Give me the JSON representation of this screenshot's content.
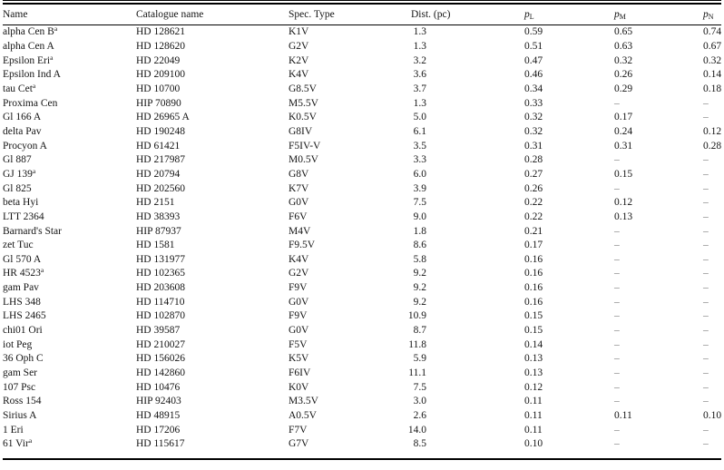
{
  "table": {
    "columns": [
      {
        "label": "Name"
      },
      {
        "label": "Catalogue name"
      },
      {
        "label": "Spec. Type"
      },
      {
        "label": "Dist. (pc)"
      },
      {
        "label": "p",
        "sub": "L"
      },
      {
        "label": "p",
        "sub": "M"
      },
      {
        "label": "p",
        "sub": "N"
      }
    ],
    "rows": [
      {
        "name": "alpha Cen B",
        "sup": "a",
        "cat": "HD 128621",
        "spec": "K1V",
        "dist": "1.3",
        "pl": "0.59",
        "pm": "0.65",
        "pn": "0.74"
      },
      {
        "name": "alpha Cen A",
        "sup": "",
        "cat": "HD 128620",
        "spec": "G2V",
        "dist": "1.3",
        "pl": "0.51",
        "pm": "0.63",
        "pn": "0.67"
      },
      {
        "name": "Epsilon Eri",
        "sup": "a",
        "cat": "HD 22049",
        "spec": "K2V",
        "dist": "3.2",
        "pl": "0.47",
        "pm": "0.32",
        "pn": "0.32"
      },
      {
        "name": "Epsilon Ind A",
        "sup": "",
        "cat": "HD 209100",
        "spec": "K4V",
        "dist": "3.6",
        "pl": "0.46",
        "pm": "0.26",
        "pn": "0.14"
      },
      {
        "name": "tau Cet",
        "sup": "a",
        "cat": "HD 10700",
        "spec": "G8.5V",
        "dist": "3.7",
        "pl": "0.34",
        "pm": "0.29",
        "pn": "0.18"
      },
      {
        "name": "Proxima Cen",
        "sup": "",
        "cat": "HIP 70890",
        "spec": "M5.5V",
        "dist": "1.3",
        "pl": "0.33",
        "pm": "–",
        "pn": "–"
      },
      {
        "name": "Gl 166 A",
        "sup": "",
        "cat": "HD 26965 A",
        "spec": "K0.5V",
        "dist": "5.0",
        "pl": "0.32",
        "pm": "0.17",
        "pn": "–"
      },
      {
        "name": "delta Pav",
        "sup": "",
        "cat": "HD 190248",
        "spec": "G8IV",
        "dist": "6.1",
        "pl": "0.32",
        "pm": "0.24",
        "pn": "0.12"
      },
      {
        "name": "Procyon A",
        "sup": "",
        "cat": "HD 61421",
        "spec": "F5IV-V",
        "dist": "3.5",
        "pl": "0.31",
        "pm": "0.31",
        "pn": "0.28"
      },
      {
        "name": "Gl 887",
        "sup": "",
        "cat": "HD 217987",
        "spec": "M0.5V",
        "dist": "3.3",
        "pl": "0.28",
        "pm": "–",
        "pn": "–"
      },
      {
        "name": "GJ 139",
        "sup": "a",
        "cat": "HD 20794",
        "spec": "G8V",
        "dist": "6.0",
        "pl": "0.27",
        "pm": "0.15",
        "pn": "–"
      },
      {
        "name": "Gl 825",
        "sup": "",
        "cat": "HD 202560",
        "spec": "K7V",
        "dist": "3.9",
        "pl": "0.26",
        "pm": "–",
        "pn": "–"
      },
      {
        "name": "beta Hyi",
        "sup": "",
        "cat": "HD 2151",
        "spec": "G0V",
        "dist": "7.5",
        "pl": "0.22",
        "pm": "0.12",
        "pn": "–"
      },
      {
        "name": "LTT 2364",
        "sup": "",
        "cat": "HD 38393",
        "spec": "F6V",
        "dist": "9.0",
        "pl": "0.22",
        "pm": "0.13",
        "pn": "–"
      },
      {
        "name": "Barnard's Star",
        "sup": "",
        "cat": "HIP 87937",
        "spec": "M4V",
        "dist": "1.8",
        "pl": "0.21",
        "pm": "–",
        "pn": "–"
      },
      {
        "name": "zet Tuc",
        "sup": "",
        "cat": "HD 1581",
        "spec": "F9.5V",
        "dist": "8.6",
        "pl": "0.17",
        "pm": "–",
        "pn": "–"
      },
      {
        "name": "Gl 570 A",
        "sup": "",
        "cat": "HD 131977",
        "spec": "K4V",
        "dist": "5.8",
        "pl": "0.16",
        "pm": "–",
        "pn": "–"
      },
      {
        "name": "HR 4523",
        "sup": "a",
        "cat": "HD 102365",
        "spec": "G2V",
        "dist": "9.2",
        "pl": "0.16",
        "pm": "–",
        "pn": "–"
      },
      {
        "name": "gam Pav",
        "sup": "",
        "cat": "HD 203608",
        "spec": "F9V",
        "dist": "9.2",
        "pl": "0.16",
        "pm": "–",
        "pn": "–"
      },
      {
        "name": "LHS 348",
        "sup": "",
        "cat": "HD 114710",
        "spec": "G0V",
        "dist": "9.2",
        "pl": "0.16",
        "pm": "–",
        "pn": "–"
      },
      {
        "name": "LHS 2465",
        "sup": "",
        "cat": "HD 102870",
        "spec": "F9V",
        "dist": "10.9",
        "pl": "0.15",
        "pm": "–",
        "pn": "–"
      },
      {
        "name": "chi01 Ori",
        "sup": "",
        "cat": "HD 39587",
        "spec": "G0V",
        "dist": "8.7",
        "pl": "0.15",
        "pm": "–",
        "pn": "–"
      },
      {
        "name": "iot Peg",
        "sup": "",
        "cat": "HD 210027",
        "spec": "F5V",
        "dist": "11.8",
        "pl": "0.14",
        "pm": "–",
        "pn": "–"
      },
      {
        "name": "36 Oph C",
        "sup": "",
        "cat": "HD 156026",
        "spec": "K5V",
        "dist": "5.9",
        "pl": "0.13",
        "pm": "–",
        "pn": "–"
      },
      {
        "name": "gam Ser",
        "sup": "",
        "cat": "HD 142860",
        "spec": "F6IV",
        "dist": "11.1",
        "pl": "0.13",
        "pm": "–",
        "pn": "–"
      },
      {
        "name": "107 Psc",
        "sup": "",
        "cat": "HD 10476",
        "spec": "K0V",
        "dist": "7.5",
        "pl": "0.12",
        "pm": "–",
        "pn": "–"
      },
      {
        "name": "Ross 154",
        "sup": "",
        "cat": "HIP 92403",
        "spec": "M3.5V",
        "dist": "3.0",
        "pl": "0.11",
        "pm": "–",
        "pn": "–"
      },
      {
        "name": "Sirius A",
        "sup": "",
        "cat": "HD 48915",
        "spec": "A0.5V",
        "dist": "2.6",
        "pl": "0.11",
        "pm": "0.11",
        "pn": "0.10"
      },
      {
        "name": "1 Eri",
        "sup": "",
        "cat": "HD 17206",
        "spec": "F7V",
        "dist": "14.0",
        "pl": "0.11",
        "pm": "–",
        "pn": "–"
      },
      {
        "name": "61 Vir",
        "sup": "a",
        "cat": "HD 115617",
        "spec": "G7V",
        "dist": "8.5",
        "pl": "0.10",
        "pm": "–",
        "pn": "–"
      }
    ]
  }
}
